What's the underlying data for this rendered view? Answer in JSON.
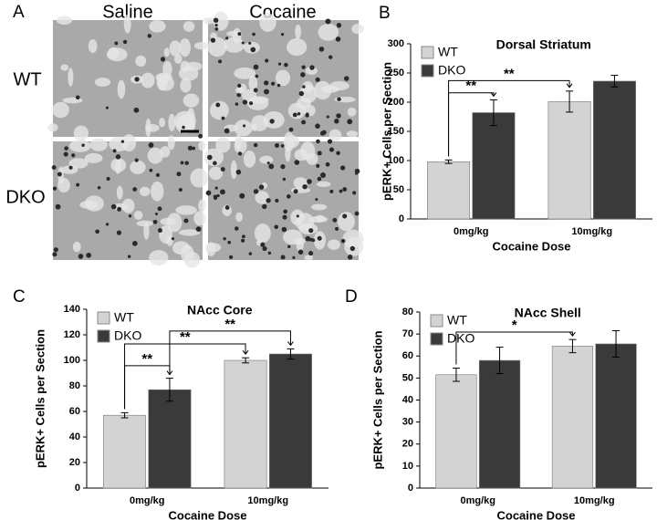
{
  "panel_a": {
    "label": "A",
    "columns": [
      "Saline",
      "Cocaine"
    ],
    "rows": [
      "WT",
      "DKO"
    ]
  },
  "chart_data": [
    {
      "type": "bar",
      "panel_label": "B",
      "title": "Dorsal Striatum",
      "y_label": "pERK+ Cells per Section",
      "x_label": "Cocaine Dose",
      "categories": [
        "0mg/kg",
        "10mg/kg"
      ],
      "series": [
        {
          "name": "WT",
          "color": "#d3d3d3",
          "values": [
            98,
            201
          ],
          "errors": [
            3,
            18
          ]
        },
        {
          "name": "DKO",
          "color": "#3a3a3a",
          "values": [
            182,
            236
          ],
          "errors": [
            22,
            10
          ]
        }
      ],
      "ylim": [
        0,
        300
      ],
      "yticks": [
        0,
        50,
        100,
        150,
        200,
        250,
        300
      ],
      "annotations": [
        "**",
        "**"
      ]
    },
    {
      "type": "bar",
      "panel_label": "C",
      "title": "NAcc Core",
      "y_label": "pERK+ Cells per Section",
      "x_label": "Cocaine Dose",
      "categories": [
        "0mg/kg",
        "10mg/kg"
      ],
      "series": [
        {
          "name": "WT",
          "color": "#d3d3d3",
          "values": [
            57,
            100
          ],
          "errors": [
            2,
            2
          ]
        },
        {
          "name": "DKO",
          "color": "#3a3a3a",
          "values": [
            77,
            105
          ],
          "errors": [
            9,
            4
          ]
        }
      ],
      "ylim": [
        0,
        140
      ],
      "yticks": [
        0,
        20,
        40,
        60,
        80,
        100,
        120,
        140
      ],
      "annotations": [
        "**",
        "**",
        "**"
      ]
    },
    {
      "type": "bar",
      "panel_label": "D",
      "title": "NAcc Shell",
      "y_label": "pERK+ Cells per Section",
      "x_label": "Cocaine Dose",
      "categories": [
        "0mg/kg",
        "10mg/kg"
      ],
      "series": [
        {
          "name": "WT",
          "color": "#d3d3d3",
          "values": [
            51.5,
            64.5
          ],
          "errors": [
            3,
            3
          ]
        },
        {
          "name": "DKO",
          "color": "#3a3a3a",
          "values": [
            58,
            65.5
          ],
          "errors": [
            6,
            6
          ]
        }
      ],
      "ylim": [
        0,
        80
      ],
      "yticks": [
        0,
        10,
        20,
        30,
        40,
        50,
        60,
        70,
        80
      ],
      "annotations": [
        "*"
      ]
    }
  ]
}
